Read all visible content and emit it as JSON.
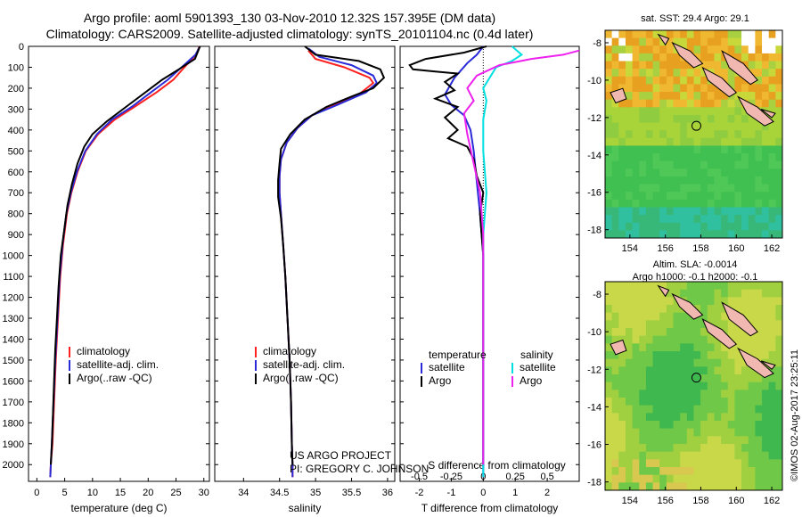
{
  "header": {
    "line1": "Argo profile: aoml 5901393_130 03-Nov-2010 12.32S 157.395E (DM data)",
    "line2": "Climatology: CARS2009. Satellite-adjusted climatology: synTS_20101104.nc (0.4d later)"
  },
  "colors": {
    "climatology": "#ff2020",
    "satellite": "#2a2ad8",
    "argo": "#000000",
    "sal_satellite": "#00e0e0",
    "sal_argo": "#ee22ee"
  },
  "chart_data": [
    {
      "type": "line",
      "name": "temperature-profile",
      "xlabel": "temperature (deg C)",
      "xlim": [
        -1.5,
        31
      ],
      "xticks": [
        0,
        5,
        10,
        15,
        20,
        25,
        30
      ],
      "ylim": [
        0,
        2080
      ],
      "yticks": [
        0,
        100,
        200,
        300,
        400,
        500,
        600,
        700,
        800,
        900,
        1000,
        1100,
        1200,
        1300,
        1400,
        1500,
        1600,
        1700,
        1800,
        1900,
        2000
      ],
      "legend": [
        "climatology",
        "satellite-adj. clim.",
        "Argo(..raw -QC)"
      ],
      "series": [
        {
          "name": "climatology",
          "color_key": "climatology",
          "points": [
            [
              29.2,
              0
            ],
            [
              28.6,
              40
            ],
            [
              26.5,
              100
            ],
            [
              24.5,
              160
            ],
            [
              21.5,
              220
            ],
            [
              17.5,
              290
            ],
            [
              14,
              350
            ],
            [
              11,
              420
            ],
            [
              8.8,
              500
            ],
            [
              7.3,
              600
            ],
            [
              6.2,
              700
            ],
            [
              5.4,
              800
            ],
            [
              4.7,
              950
            ],
            [
              4.2,
              1100
            ],
            [
              3.8,
              1300
            ],
            [
              3.4,
              1500
            ],
            [
              3.1,
              1700
            ],
            [
              2.8,
              1900
            ],
            [
              2.5,
              2000
            ],
            [
              2.4,
              2060
            ]
          ]
        },
        {
          "name": "satellite-adj. clim.",
          "color_key": "satellite",
          "points": [
            [
              29.3,
              0
            ],
            [
              28.5,
              40
            ],
            [
              26,
              100
            ],
            [
              23.5,
              160
            ],
            [
              20.5,
              220
            ],
            [
              17,
              290
            ],
            [
              13.5,
              350
            ],
            [
              10.8,
              420
            ],
            [
              8.7,
              500
            ],
            [
              7.2,
              600
            ],
            [
              6.1,
              700
            ],
            [
              5.3,
              800
            ],
            [
              4.6,
              950
            ],
            [
              4.1,
              1100
            ],
            [
              3.7,
              1300
            ],
            [
              3.3,
              1500
            ],
            [
              3,
              1700
            ],
            [
              2.7,
              1900
            ],
            [
              2.5,
              2000
            ],
            [
              2.4,
              2060
            ]
          ]
        },
        {
          "name": "Argo",
          "color_key": "argo",
          "points": [
            [
              29.3,
              0
            ],
            [
              28.4,
              60
            ],
            [
              25.5,
              110
            ],
            [
              22.5,
              160
            ],
            [
              19.5,
              220
            ],
            [
              16,
              290
            ],
            [
              12.5,
              360
            ],
            [
              10,
              420
            ],
            [
              8.5,
              480
            ],
            [
              7.3,
              560
            ],
            [
              6.3,
              660
            ],
            [
              5.5,
              760
            ],
            [
              4.9,
              880
            ],
            [
              4.3,
              1000
            ],
            [
              3.9,
              1150
            ],
            [
              3.6,
              1300
            ],
            [
              3.3,
              1450
            ],
            [
              3.1,
              1600
            ],
            [
              2.9,
              1750
            ],
            [
              2.7,
              1900
            ],
            [
              2.5,
              2000
            ]
          ]
        }
      ]
    },
    {
      "type": "line",
      "name": "salinity-profile",
      "xlabel": "salinity",
      "xlim": [
        33.6,
        36.1
      ],
      "xticks": [
        34,
        34.5,
        35,
        35.5,
        36
      ],
      "ylim": [
        0,
        2080
      ],
      "legend": [
        "climatology",
        "satellite-adj. clim.",
        "Argo(..raw -QC)"
      ],
      "series": [
        {
          "name": "climatology",
          "color_key": "climatology",
          "points": [
            [
              34.9,
              20
            ],
            [
              35,
              60
            ],
            [
              35.4,
              100
            ],
            [
              35.75,
              150
            ],
            [
              35.8,
              175
            ],
            [
              35.6,
              230
            ],
            [
              35.25,
              280
            ],
            [
              34.95,
              330
            ],
            [
              34.75,
              390
            ],
            [
              34.6,
              460
            ],
            [
              34.52,
              540
            ],
            [
              34.5,
              620
            ],
            [
              34.5,
              700
            ],
            [
              34.52,
              800
            ],
            [
              34.55,
              950
            ],
            [
              34.58,
              1100
            ],
            [
              34.61,
              1300
            ],
            [
              34.64,
              1500
            ],
            [
              34.66,
              1700
            ],
            [
              34.67,
              1900
            ],
            [
              34.68,
              2000
            ],
            [
              34.68,
              2060
            ]
          ]
        },
        {
          "name": "satellite-adj. clim.",
          "color_key": "satellite",
          "points": [
            [
              34.9,
              10
            ],
            [
              35.05,
              50
            ],
            [
              35.5,
              90
            ],
            [
              35.8,
              140
            ],
            [
              35.85,
              175
            ],
            [
              35.7,
              220
            ],
            [
              35.3,
              280
            ],
            [
              34.95,
              330
            ],
            [
              34.75,
              390
            ],
            [
              34.6,
              460
            ],
            [
              34.52,
              540
            ],
            [
              34.5,
              620
            ],
            [
              34.5,
              700
            ],
            [
              34.52,
              800
            ],
            [
              34.55,
              950
            ],
            [
              34.58,
              1100
            ],
            [
              34.61,
              1300
            ],
            [
              34.64,
              1500
            ],
            [
              34.66,
              1700
            ],
            [
              34.67,
              1900
            ],
            [
              34.68,
              2000
            ],
            [
              34.68,
              2060
            ]
          ]
        },
        {
          "name": "Argo",
          "color_key": "argo",
          "points": [
            [
              34.85,
              0
            ],
            [
              35.0,
              40
            ],
            [
              35.6,
              70
            ],
            [
              35.9,
              110
            ],
            [
              35.95,
              150
            ],
            [
              35.8,
              200
            ],
            [
              35.5,
              240
            ],
            [
              35.15,
              290
            ],
            [
              34.85,
              350
            ],
            [
              34.65,
              420
            ],
            [
              34.52,
              490
            ],
            [
              34.5,
              560
            ],
            [
              34.48,
              640
            ],
            [
              34.48,
              720
            ],
            [
              34.52,
              820
            ],
            [
              34.55,
              950
            ],
            [
              34.58,
              1100
            ],
            [
              34.61,
              1300
            ],
            [
              34.64,
              1500
            ],
            [
              34.66,
              1700
            ],
            [
              34.67,
              1900
            ],
            [
              34.68,
              2000
            ]
          ]
        }
      ]
    },
    {
      "type": "line",
      "name": "difference-profile",
      "xlabel": "T difference from climatology",
      "xlabel_top": "S difference from climatology",
      "xlim": [
        -2.6,
        3
      ],
      "xticks": [
        -2,
        -1,
        0,
        1,
        2
      ],
      "xticks_top_labels": [
        "-0.5",
        "-0.25",
        "0",
        "0.25",
        "0.5"
      ],
      "xticks_top_pos": [
        -2,
        -1,
        0,
        1,
        2
      ],
      "ylim": [
        0,
        2080
      ],
      "legend_temperature": {
        "title": "temperature",
        "items": [
          "satellite",
          "Argo"
        ]
      },
      "legend_salinity": {
        "title": "salinity",
        "items": [
          "satellite",
          "Argo"
        ]
      },
      "series": [
        {
          "name": "T satellite",
          "color_key": "satellite",
          "points": [
            [
              0,
              0
            ],
            [
              -0.2,
              40
            ],
            [
              -0.5,
              80
            ],
            [
              -0.9,
              150
            ],
            [
              -1.2,
              230
            ],
            [
              -1,
              280
            ],
            [
              -0.6,
              330
            ],
            [
              -0.4,
              400
            ],
            [
              -0.3,
              500
            ],
            [
              -0.2,
              650
            ],
            [
              -0.1,
              800
            ],
            [
              0,
              1000
            ],
            [
              0,
              1500
            ],
            [
              0,
              2060
            ]
          ]
        },
        {
          "name": "T Argo",
          "color_key": "argo",
          "points": [
            [
              0.1,
              0
            ],
            [
              -0.6,
              30
            ],
            [
              -1.8,
              60
            ],
            [
              -2.3,
              90
            ],
            [
              -2.2,
              110
            ],
            [
              -1.5,
              120
            ],
            [
              -0.8,
              130
            ],
            [
              -1.2,
              170
            ],
            [
              -0.9,
              210
            ],
            [
              -1.5,
              250
            ],
            [
              -0.8,
              290
            ],
            [
              -1.2,
              340
            ],
            [
              -0.8,
              400
            ],
            [
              -1.1,
              440
            ],
            [
              -0.5,
              480
            ],
            [
              -0.3,
              540
            ],
            [
              -0.2,
              620
            ],
            [
              0,
              700
            ],
            [
              -0.1,
              800
            ],
            [
              0,
              1000
            ],
            [
              0,
              1500
            ],
            [
              0,
              2000
            ]
          ]
        },
        {
          "name": "S satellite",
          "color_key": "sal_satellite",
          "points": [
            [
              0.9,
              0
            ],
            [
              1.2,
              40
            ],
            [
              0.9,
              70
            ],
            [
              0.4,
              100
            ],
            [
              0.2,
              150
            ],
            [
              0,
              200
            ],
            [
              0.1,
              260
            ],
            [
              0,
              350
            ],
            [
              0,
              500
            ],
            [
              0.1,
              700
            ],
            [
              0,
              900
            ],
            [
              0,
              1500
            ],
            [
              0,
              2060
            ]
          ]
        },
        {
          "name": "S Argo",
          "color_key": "sal_argo",
          "points": [
            [
              3,
              20
            ],
            [
              2.5,
              40
            ],
            [
              1.5,
              60
            ],
            [
              0.5,
              90
            ],
            [
              -0.2,
              140
            ],
            [
              -0.5,
              200
            ],
            [
              -0.3,
              260
            ],
            [
              -0.6,
              320
            ],
            [
              -0.5,
              420
            ],
            [
              -0.3,
              560
            ],
            [
              -0.1,
              700
            ],
            [
              0,
              900
            ],
            [
              0,
              1500
            ],
            [
              0,
              2000
            ]
          ]
        }
      ]
    }
  ],
  "annotations": {
    "project": "US ARGO PROJECT",
    "pi": "PI: GREGORY C. JOHNSON"
  },
  "maps": {
    "sst": {
      "title": "sat. SST: 29.4  Argo: 29.1",
      "yticks": [
        "-8",
        "-10",
        "-12",
        "-14",
        "-16",
        "-18"
      ],
      "xticks": [
        "154",
        "156",
        "158",
        "160",
        "162"
      ]
    },
    "sla": {
      "title1": "Altim. SLA: -0.0014",
      "title2": "Argo h1000: -0.1  h2000: -0.1",
      "yticks": [
        "-8",
        "-10",
        "-12",
        "-14",
        "-16",
        "-18"
      ],
      "xticks": [
        "154",
        "156",
        "158",
        "160",
        "162"
      ]
    }
  },
  "footer": "©IMOS 02-Aug-2017 23:25:11"
}
